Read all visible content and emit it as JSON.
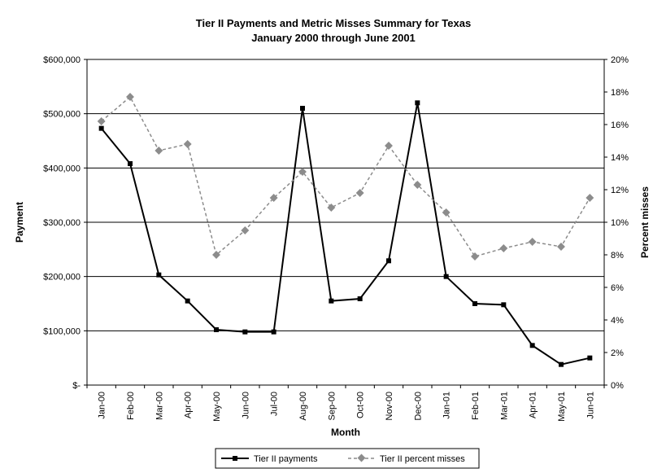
{
  "chart_data": {
    "type": "line",
    "title": "Tier II Payments and Metric Misses Summary for Texas",
    "subtitle": "January 2000 through June 2001",
    "xlabel": "Month",
    "ylabel": "Payment",
    "y2label": "Percent misses",
    "categories": [
      "Jan-00",
      "Feb-00",
      "Mar-00",
      "Apr-00",
      "May-00",
      "Jun-00",
      "Jul-00",
      "Aug-00",
      "Sep-00",
      "Oct-00",
      "Nov-00",
      "Dec-00",
      "Jan-01",
      "Feb-01",
      "Mar-01",
      "Apr-01",
      "May-01",
      "Jun-01"
    ],
    "ylim": [
      0,
      600000
    ],
    "y2lim": [
      0,
      20
    ],
    "y_ticks": [
      "$-",
      "$100,000",
      "$200,000",
      "$300,000",
      "$400,000",
      "$500,000",
      "$600,000"
    ],
    "y2_ticks": [
      "0%",
      "2%",
      "4%",
      "6%",
      "8%",
      "10%",
      "12%",
      "14%",
      "16%",
      "18%",
      "20%"
    ],
    "grid": true,
    "legend_position": "bottom",
    "series": [
      {
        "name": "Tier II  payments",
        "axis": "left",
        "color": "#000000",
        "style": "solid",
        "marker": "square",
        "values": [
          473000,
          408000,
          203000,
          155000,
          102000,
          98000,
          98000,
          510000,
          155000,
          159000,
          229000,
          520000,
          200000,
          150000,
          148000,
          73000,
          38000,
          50000
        ]
      },
      {
        "name": "Tier II percent misses",
        "axis": "right",
        "color": "#8c8c8c",
        "style": "dashed",
        "marker": "diamond",
        "values": [
          16.2,
          17.7,
          14.4,
          14.8,
          8.0,
          9.5,
          11.5,
          13.1,
          10.9,
          11.8,
          14.7,
          12.3,
          10.6,
          7.9,
          8.4,
          8.8,
          8.5,
          11.5
        ]
      }
    ]
  }
}
